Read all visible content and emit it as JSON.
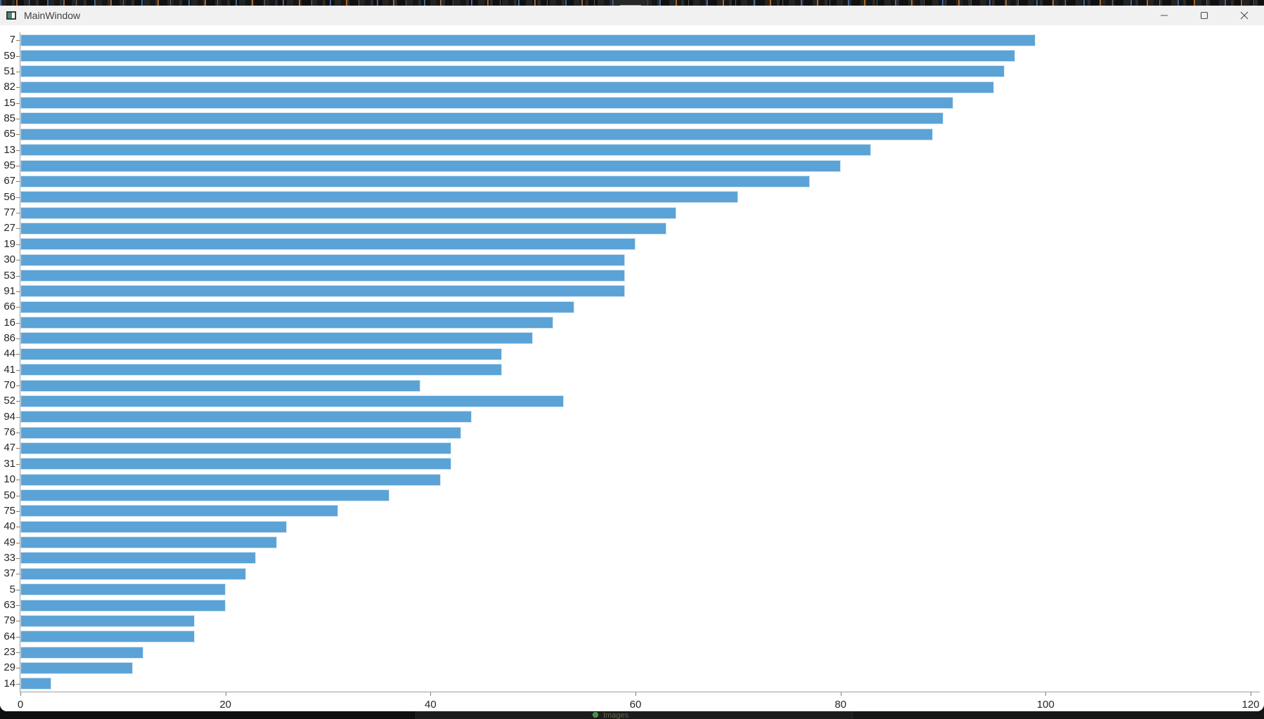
{
  "window": {
    "title": "MainWindow",
    "controls": {
      "minimize": "minimize",
      "maximize": "maximize",
      "close": "close"
    }
  },
  "background": {
    "bottom_status_text": "Images"
  },
  "chart_data": {
    "type": "bar",
    "orientation": "horizontal",
    "title": "",
    "xlabel": "",
    "ylabel": "",
    "categories": [
      "7",
      "59",
      "51",
      "82",
      "15",
      "85",
      "65",
      "13",
      "95",
      "67",
      "56",
      "77",
      "27",
      "19",
      "30",
      "53",
      "91",
      "66",
      "16",
      "86",
      "44",
      "41",
      "70",
      "52",
      "94",
      "76",
      "47",
      "31",
      "10",
      "50",
      "75",
      "40",
      "49",
      "33",
      "37",
      "5",
      "63",
      "79",
      "64",
      "23",
      "29",
      "14"
    ],
    "values": [
      99,
      97,
      96,
      95,
      91,
      90,
      89,
      83,
      80,
      77,
      70,
      64,
      63,
      60,
      59,
      59,
      59,
      54,
      52,
      50,
      47,
      47,
      39,
      53,
      44,
      43,
      42,
      42,
      41,
      36,
      31,
      26,
      25,
      23,
      22,
      20,
      20,
      17,
      17,
      12,
      11,
      3
    ],
    "xlim": [
      0,
      120
    ],
    "x_ticks": [
      0,
      20,
      40,
      60,
      80,
      100,
      120
    ],
    "grid": false,
    "legend": "none",
    "bar_color": "#5ba3d6",
    "bar_edge_color": "#cfe3f3"
  }
}
